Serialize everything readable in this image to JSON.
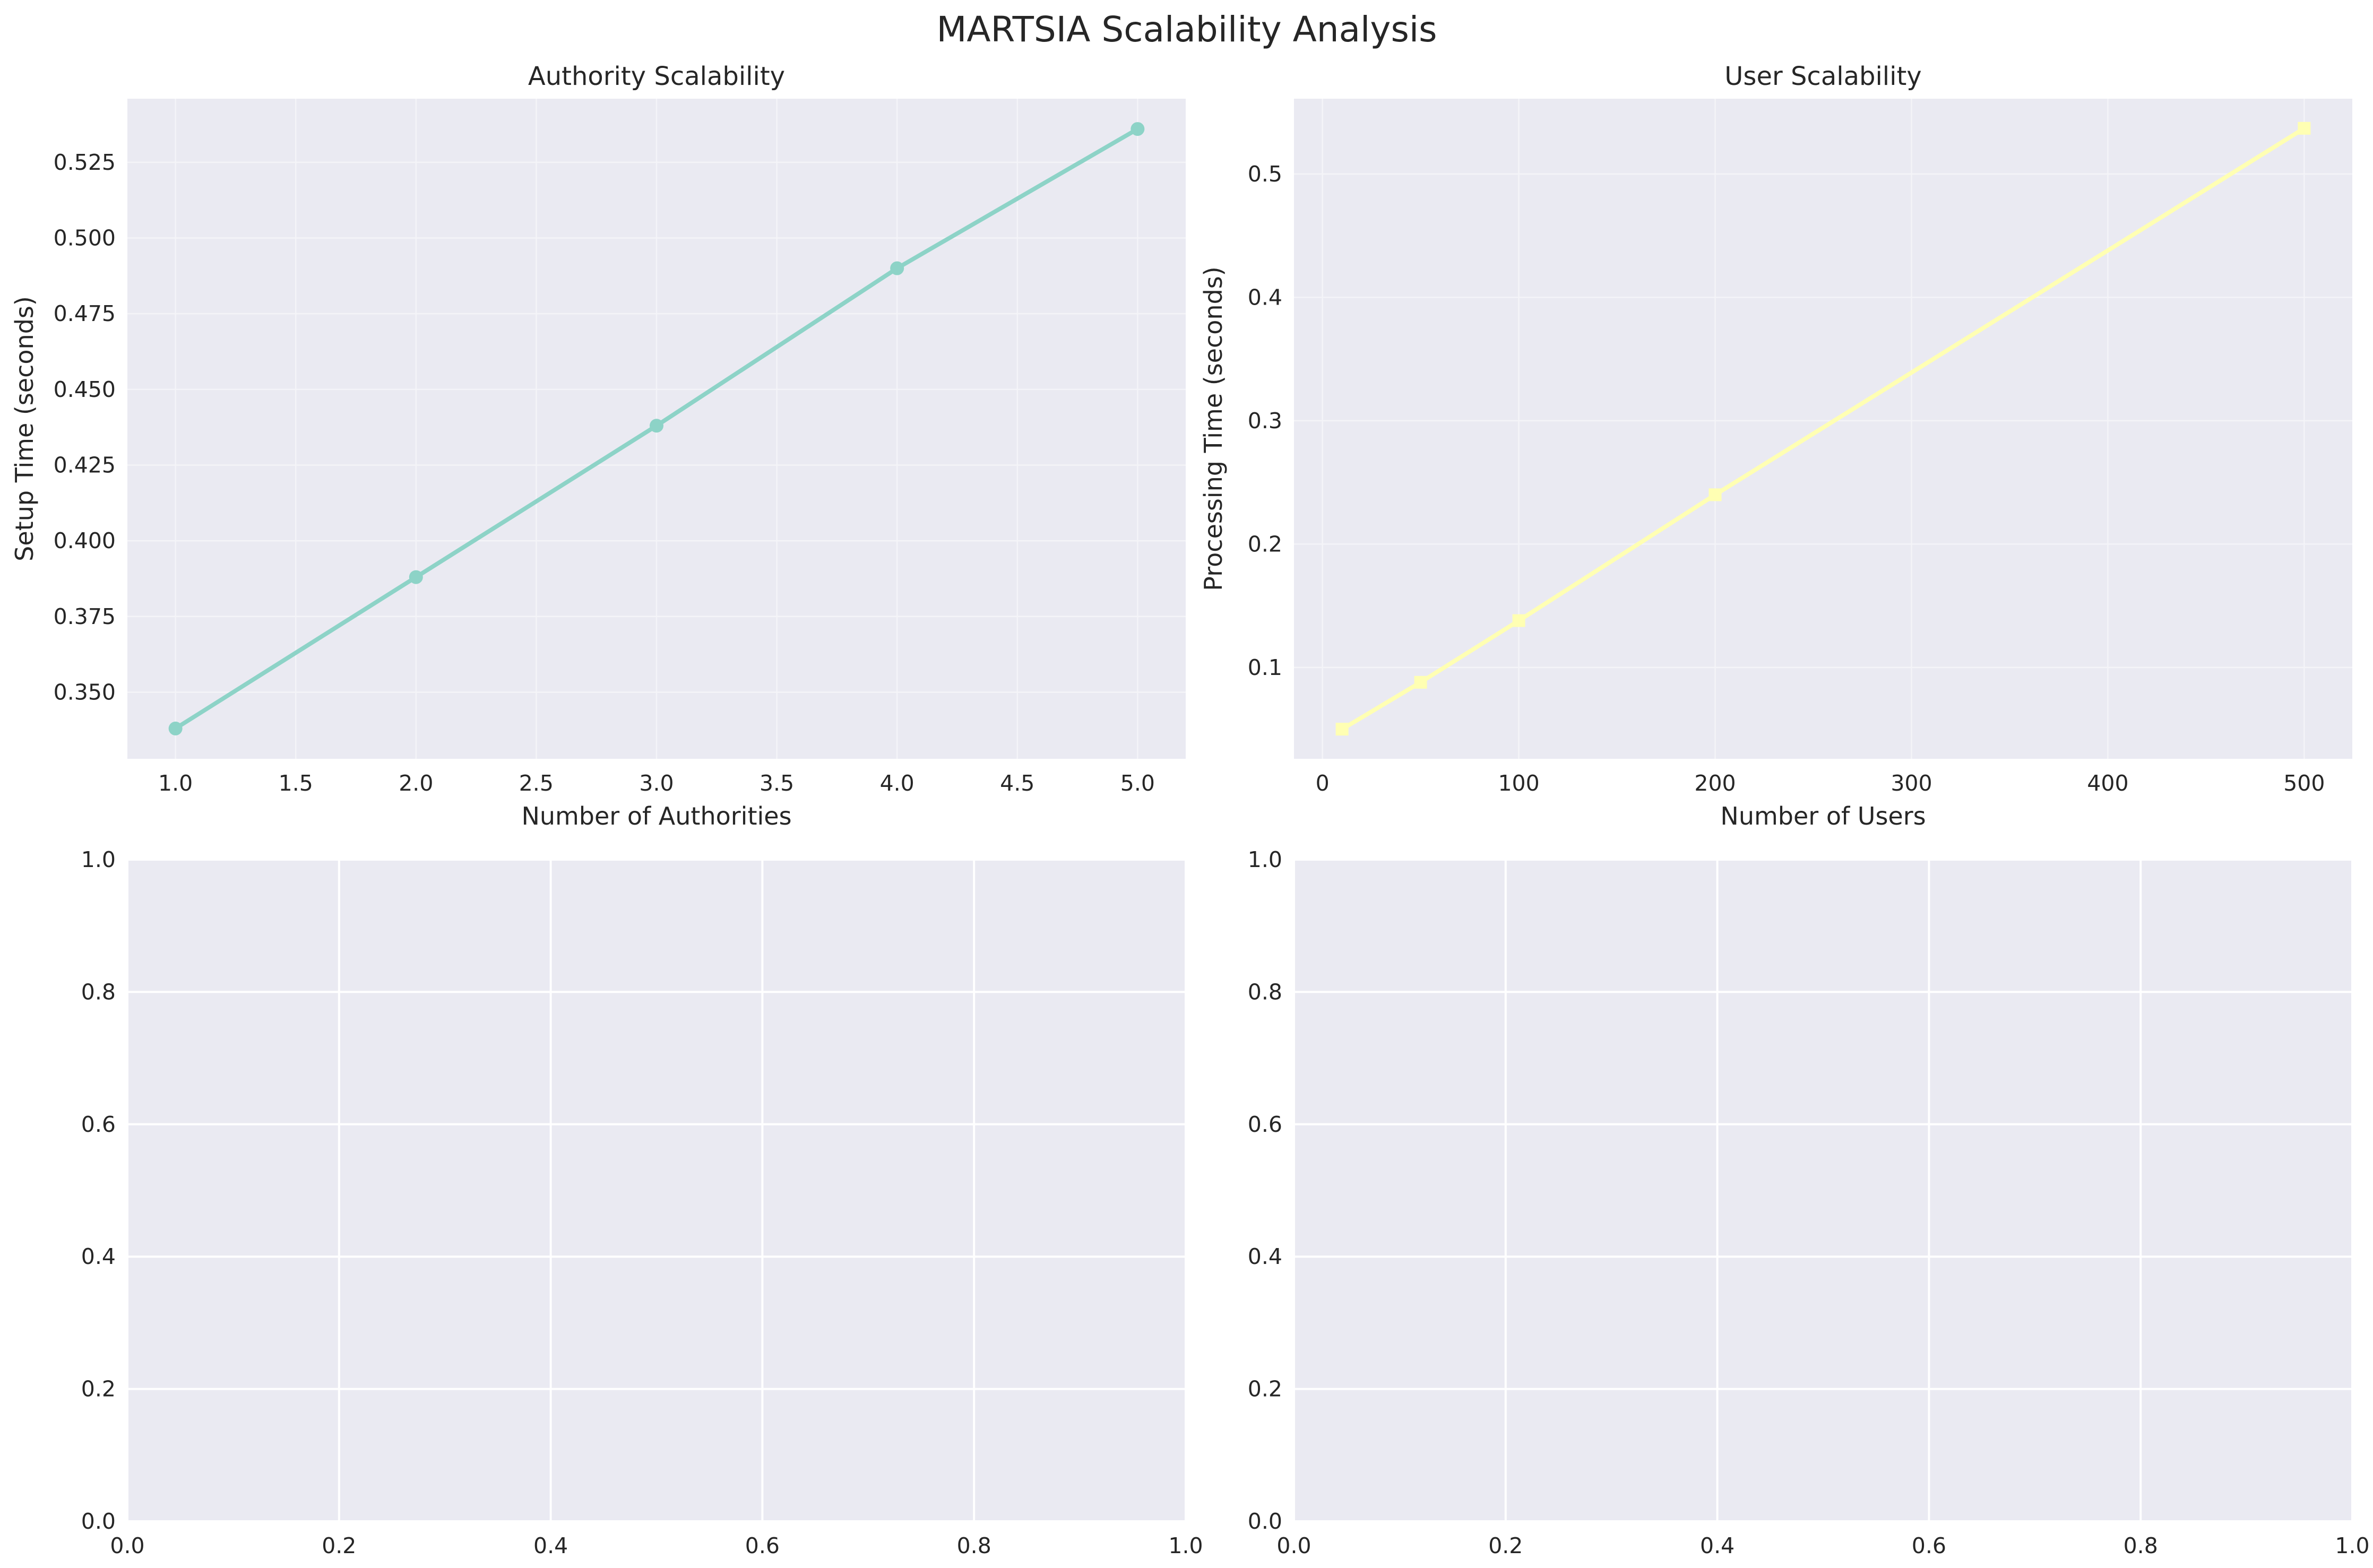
{
  "figure": {
    "title": "MARTSIA Scalability Analysis",
    "background": "#ffffff",
    "axes_facecolor": "#eaeaf2",
    "text_color": "#262626"
  },
  "chart_data": [
    {
      "id": "authority",
      "type": "line",
      "title": "Authority Scalability",
      "xlabel": "Number of Authorities",
      "ylabel": "Setup Time (seconds)",
      "xlim": [
        0.8,
        5.2
      ],
      "ylim": [
        0.328,
        0.546
      ],
      "xticks": [
        1.0,
        1.5,
        2.0,
        2.5,
        3.0,
        3.5,
        4.0,
        4.5,
        5.0
      ],
      "xtick_labels": [
        "1.0",
        "1.5",
        "2.0",
        "2.5",
        "3.0",
        "3.5",
        "4.0",
        "4.5",
        "5.0"
      ],
      "yticks": [
        0.35,
        0.375,
        0.4,
        0.425,
        0.45,
        0.475,
        0.5,
        0.525
      ],
      "ytick_labels": [
        "0.350",
        "0.375",
        "0.400",
        "0.425",
        "0.450",
        "0.475",
        "0.500",
        "0.525"
      ],
      "grid": true,
      "grid_style": "faint",
      "series": [
        {
          "marker": "circle",
          "color": "#8dd3c7",
          "x": [
            1,
            2,
            3,
            4,
            5
          ],
          "y": [
            0.338,
            0.388,
            0.438,
            0.49,
            0.536
          ]
        }
      ]
    },
    {
      "id": "user",
      "type": "line",
      "title": "User Scalability",
      "xlabel": "Number of Users",
      "ylabel": "Processing Time (seconds)",
      "xlim": [
        -14.5,
        524.5
      ],
      "ylim": [
        0.026,
        0.561
      ],
      "xticks": [
        0,
        100,
        200,
        300,
        400,
        500
      ],
      "xtick_labels": [
        "0",
        "100",
        "200",
        "300",
        "400",
        "500"
      ],
      "yticks": [
        0.1,
        0.2,
        0.3,
        0.4,
        0.5
      ],
      "ytick_labels": [
        "0.1",
        "0.2",
        "0.3",
        "0.4",
        "0.5"
      ],
      "grid": true,
      "grid_style": "faint",
      "series": [
        {
          "marker": "square",
          "color": "#ffffb3",
          "x": [
            10,
            50,
            100,
            200,
            500
          ],
          "y": [
            0.05,
            0.088,
            0.138,
            0.24,
            0.537
          ]
        }
      ]
    },
    {
      "id": "empty-left",
      "type": "line",
      "title": "",
      "xlabel": "",
      "ylabel": "",
      "xlim": [
        0,
        1
      ],
      "ylim": [
        0,
        1
      ],
      "xticks": [
        0,
        0.2,
        0.4,
        0.6,
        0.8,
        1.0
      ],
      "xtick_labels": [
        "0.0",
        "0.2",
        "0.4",
        "0.6",
        "0.8",
        "1.0"
      ],
      "yticks": [
        0,
        0.2,
        0.4,
        0.6,
        0.8,
        1.0
      ],
      "ytick_labels": [
        "0.0",
        "0.2",
        "0.4",
        "0.6",
        "0.8",
        "1.0"
      ],
      "grid": true,
      "grid_style": "white",
      "series": []
    },
    {
      "id": "empty-right",
      "type": "line",
      "title": "",
      "xlabel": "",
      "ylabel": "",
      "xlim": [
        0,
        1
      ],
      "ylim": [
        0,
        1
      ],
      "xticks": [
        0,
        0.2,
        0.4,
        0.6,
        0.8,
        1.0
      ],
      "xtick_labels": [
        "0.0",
        "0.2",
        "0.4",
        "0.6",
        "0.8",
        "1.0"
      ],
      "yticks": [
        0,
        0.2,
        0.4,
        0.6,
        0.8,
        1.0
      ],
      "ytick_labels": [
        "0.0",
        "0.2",
        "0.4",
        "0.6",
        "0.8",
        "1.0"
      ],
      "grid": true,
      "grid_style": "white",
      "series": []
    }
  ]
}
